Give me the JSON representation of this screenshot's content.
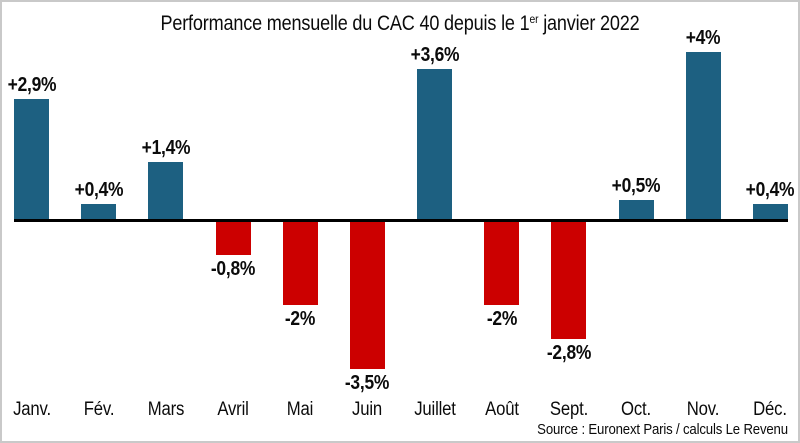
{
  "title": {
    "prefix": "Performance mensuelle du CAC 40 depuis le 1",
    "superscript": "er",
    "suffix": " janvier 2022"
  },
  "source": "Source : Euronext Paris / calculs Le Revenu",
  "colors": {
    "positive": "#1d6081",
    "negative": "#cc0000",
    "axis": "#000000",
    "frame": "#c9c9c9",
    "text": "#0b0b0b"
  },
  "chart_data": {
    "type": "bar",
    "title": "Performance mensuelle du CAC 40 depuis le 1er janvier 2022",
    "categories": [
      "Janv.",
      "Fév.",
      "Mars",
      "Avril",
      "Mai",
      "Juin",
      "Juillet",
      "Août",
      "Sept.",
      "Oct.",
      "Nov.",
      "Déc."
    ],
    "values": [
      2.9,
      0.4,
      1.4,
      -0.8,
      -2,
      -3.5,
      3.6,
      -2,
      -2.8,
      0.5,
      4,
      0.4
    ],
    "bar_labels": [
      "+2,9%",
      "+0,4%",
      "+1,4%",
      "-0,8%",
      "-2%",
      "-3,5%",
      "+3,6%",
      "-2%",
      "-2,8%",
      "+0,5%",
      "+4%",
      "+0,4%"
    ],
    "unit": "%",
    "positive_color": "#1d6081",
    "negative_color": "#cc0000",
    "ylim": [
      -4.2,
      4.7
    ],
    "grid": false,
    "legend": false,
    "xlabel": "",
    "ylabel": "",
    "source": "Source : Euronext Paris / calculs Le Revenu"
  }
}
